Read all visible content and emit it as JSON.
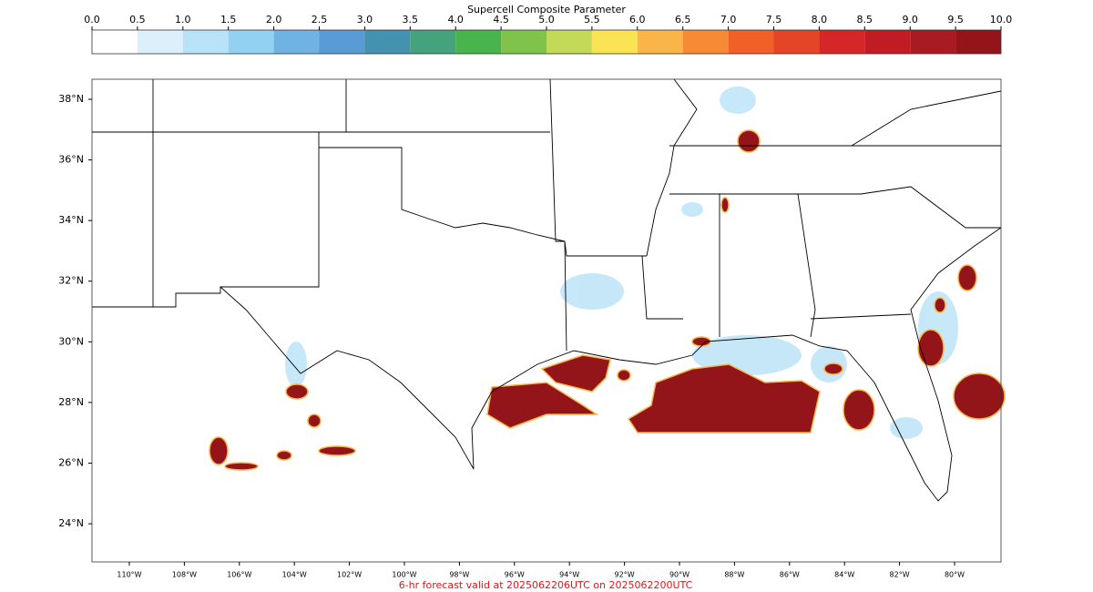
{
  "chart_data": {
    "type": "map",
    "colorbar": {
      "title": "Supercell Composite Parameter",
      "ticks": [
        {
          "value": 0,
          "label": "0.0"
        },
        0.5,
        {
          "value": 1,
          "label": "1.0"
        },
        1.5,
        {
          "value": 2,
          "label": "2.0"
        },
        2.5,
        {
          "value": 3,
          "label": "3.0"
        },
        3.5,
        {
          "value": 4,
          "label": "4.0"
        },
        4.5,
        {
          "value": 5,
          "label": "5.0"
        },
        5.5,
        {
          "value": 6,
          "label": "6.0"
        },
        6.5,
        {
          "value": 7,
          "label": "7.0"
        },
        7.5,
        {
          "value": 8,
          "label": "8.0"
        },
        8.5,
        {
          "value": 9,
          "label": "9.0"
        },
        9.5,
        {
          "value": 10,
          "label": "10.0"
        }
      ],
      "colors": [
        "#ffffff",
        "#dcf0fb",
        "#b8e2f7",
        "#93d0f2",
        "#70b2e1",
        "#5b9bd5",
        "#4592b0",
        "#44a37d",
        "#47b44d",
        "#7fc34b",
        "#c2d95a",
        "#fbe454",
        "#f9b547",
        "#f68a35",
        "#f26029",
        "#e44526",
        "#d52628",
        "#c01c24",
        "#a91b22",
        "#931519"
      ]
    },
    "lat_ticks": [
      {
        "value": 38,
        "label": "38°N"
      },
      {
        "value": 36,
        "label": "36°N"
      },
      {
        "value": 34,
        "label": "34°N"
      },
      {
        "value": 32,
        "label": "32°N"
      },
      {
        "value": 30,
        "label": "30°N"
      },
      {
        "value": 28,
        "label": "28°N"
      },
      {
        "value": 26,
        "label": "26°N"
      },
      {
        "value": 24,
        "label": "24°N"
      }
    ],
    "lon_ticks": [
      {
        "value": -110,
        "label": "110°W"
      },
      {
        "value": -108,
        "label": "108°W"
      },
      {
        "value": -106,
        "label": "106°W"
      },
      {
        "value": -104,
        "label": "104°W"
      },
      {
        "value": -102,
        "label": "102°W"
      },
      {
        "value": -100,
        "label": "100°W"
      },
      {
        "value": -98,
        "label": "98°W"
      },
      {
        "value": -96,
        "label": "96°W"
      },
      {
        "value": -94,
        "label": "94°W"
      },
      {
        "value": -92,
        "label": "92°W"
      },
      {
        "value": -90,
        "label": "90°W"
      },
      {
        "value": -88,
        "label": "88°W"
      },
      {
        "value": -86,
        "label": "86°W"
      },
      {
        "value": -84,
        "label": "84°W"
      },
      {
        "value": -82,
        "label": "82°W"
      },
      {
        "value": -80,
        "label": "80°W"
      }
    ],
    "caption": "6-hr forecast valid at 2025062206UTC on 2025062200UTC"
  }
}
